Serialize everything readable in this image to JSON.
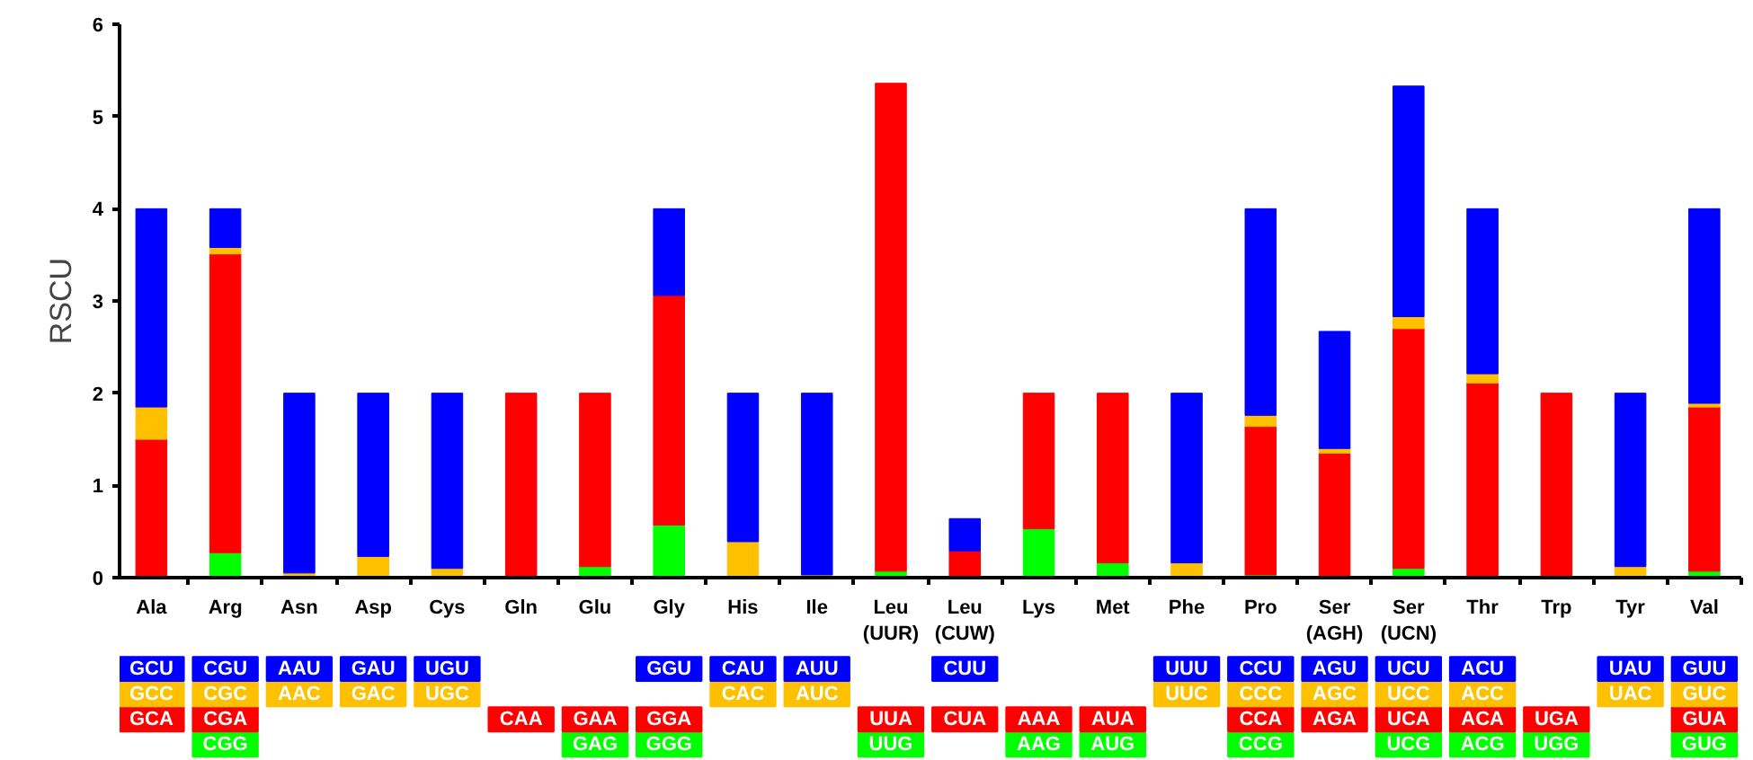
{
  "chart_data": {
    "type": "bar",
    "stacked": true,
    "ylabel": "RSCU",
    "categories": [
      "Ala",
      "Arg",
      "Asn",
      "Asp",
      "Cys",
      "Gln",
      "Glu",
      "Gly",
      "His",
      "Ile",
      "Leu\n(UUR)",
      "Leu\n(CUW)",
      "Lys",
      "Met",
      "Phe",
      "Pro",
      "Ser\n(AGH)",
      "Ser\n(UCN)",
      "Thr",
      "Trp",
      "Tyr",
      "Val"
    ],
    "ylim": [
      0,
      6
    ],
    "yticks": [
      0,
      1,
      2,
      3,
      4,
      5,
      6
    ],
    "grid": false,
    "series": [
      {
        "color": "#00ff00",
        "values": [
          null,
          0.27,
          null,
          null,
          null,
          null,
          0.12,
          0.57,
          null,
          null,
          0.07,
          null,
          0.53,
          0.16,
          null,
          0.03,
          null,
          0.1,
          0.02,
          0.02,
          null,
          0.07
        ],
        "value_labels": [
          null,
          "CGG",
          null,
          null,
          null,
          null,
          "GAG",
          "GGG",
          null,
          null,
          "UUG",
          null,
          "AAG",
          "AUG",
          null,
          "CCG",
          null,
          "UCG",
          "ACG",
          "UGG",
          null,
          "GUG"
        ]
      },
      {
        "color": "#ff0000",
        "values": [
          1.5,
          3.24,
          null,
          null,
          null,
          2.0,
          1.88,
          2.49,
          null,
          null,
          5.29,
          0.29,
          1.47,
          1.84,
          null,
          1.61,
          1.35,
          2.6,
          2.09,
          1.98,
          null,
          1.78
        ],
        "value_labels": [
          "GCA",
          "CGA",
          null,
          null,
          null,
          "CAA",
          "GAA",
          "GGA",
          null,
          null,
          "UUA",
          "CUA",
          "AAA",
          "AUA",
          null,
          "CCA",
          "AGA",
          "UCA",
          "ACA",
          "UGA",
          null,
          "GUA"
        ]
      },
      {
        "color": "#ffc000",
        "values": [
          0.35,
          0.07,
          0.05,
          0.23,
          0.1,
          null,
          null,
          null,
          0.39,
          0.03,
          null,
          null,
          null,
          null,
          0.16,
          0.12,
          0.05,
          0.13,
          0.1,
          null,
          0.12,
          0.04
        ],
        "value_labels": [
          "GCC",
          "CGC",
          "AAC",
          "GAC",
          "UGC",
          null,
          null,
          null,
          "CAC",
          "AUC",
          null,
          null,
          null,
          null,
          "UUC",
          "CCC",
          "AGC",
          "UCC",
          "ACC",
          null,
          "UAC",
          "GUC"
        ]
      },
      {
        "color": "#0000ff",
        "values": [
          2.15,
          0.42,
          1.95,
          1.77,
          1.9,
          null,
          null,
          0.94,
          1.61,
          1.97,
          null,
          0.35,
          null,
          null,
          1.84,
          2.24,
          1.27,
          2.5,
          1.79,
          null,
          1.88,
          2.11
        ],
        "value_labels": [
          "GCU",
          "CGU",
          "AAU",
          "GAU",
          "UGU",
          null,
          null,
          "GGU",
          "CAU",
          "AUU",
          null,
          "CUU",
          null,
          null,
          "UUU",
          "CCU",
          "AGU",
          "UCU",
          "ACU",
          null,
          "UAU",
          "GUU"
        ]
      }
    ]
  }
}
